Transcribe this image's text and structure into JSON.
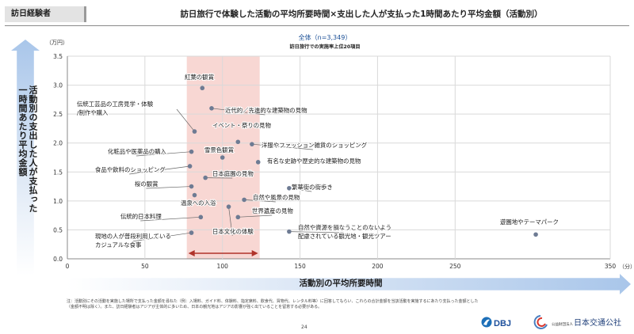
{
  "header": {
    "tag": "訪日経験者",
    "title": "訪日旅行で体験した活動の平均所要時間×支出した人が支払った1時間あたり平均金額（活動別）"
  },
  "chart_data": {
    "type": "scatter",
    "title": "全体（n=3,349）",
    "subtitle": "訪日旅行での実施率上位20項目",
    "xlabel": "活動別の平均所要時間",
    "ylabel": "活動別の支出した人が支払った一時間あたり平均金額",
    "x_unit": "（分）",
    "y_unit": "（万円）",
    "xlim": [
      0,
      350
    ],
    "ylim": [
      0,
      3.5
    ],
    "x_ticks": [
      "0",
      "50",
      "100",
      "150",
      "200",
      "250",
      "350"
    ],
    "y_ticks": [
      "0.0",
      "0.5",
      "1.0",
      "1.5",
      "2.0",
      "2.5",
      "3.0",
      "3.5"
    ],
    "grid": true,
    "highlight_band_x": [
      77,
      124
    ],
    "highlight_arrow": true,
    "points": [
      {
        "label": "紅葉の観賞",
        "x": 87,
        "y": 2.95
      },
      {
        "label": "近代的／先進的な建築物の見物",
        "x": 93,
        "y": 2.6
      },
      {
        "label": "伝統工芸品の工房見学・体験/制作や購入",
        "x": 82,
        "y": 2.2
      },
      {
        "label": "イベント・祭りの見物",
        "x": 110,
        "y": 2.02
      },
      {
        "label": "洋服やファッション雑貨のショッピング",
        "x": 119,
        "y": 1.98
      },
      {
        "label": "化粧品や医薬品の購入",
        "x": 80,
        "y": 1.85
      },
      {
        "label": "雪景色観賞",
        "x": 100,
        "y": 1.75
      },
      {
        "label": "有名な史跡や歴史的な建築物の見物",
        "x": 123,
        "y": 1.67
      },
      {
        "label": "食品や飲料のショッピング",
        "x": 79,
        "y": 1.6
      },
      {
        "label": "日本庭園の見物",
        "x": 89,
        "y": 1.4
      },
      {
        "label": "桜の観賞",
        "x": 80,
        "y": 1.25
      },
      {
        "label": "繁華街の街歩き",
        "x": 143,
        "y": 1.22
      },
      {
        "label": "温泉への入浴",
        "x": 82,
        "y": 1.1
      },
      {
        "label": "自然や風景の見物",
        "x": 114,
        "y": 1.02
      },
      {
        "label": "伝統的日本料理",
        "x": 86,
        "y": 0.72
      },
      {
        "label": "世界遺産の見物",
        "x": 110,
        "y": 0.72
      },
      {
        "label": "日本文化の体験",
        "x": 104,
        "y": 0.9
      },
      {
        "label": "現地の人が普段利用しているカジュアルな食事",
        "x": 80,
        "y": 0.45
      },
      {
        "label": "自然や資源を損なうことのないよう配慮されている観光地・観光ツアー",
        "x": 143,
        "y": 0.47
      },
      {
        "label": "遊園地やテーマパーク",
        "x": 302,
        "y": 0.42
      }
    ]
  },
  "footnote": "注：活動別にその活動を実施した場所で支払った金額を尋ねた（例：入場料、ガイド料、体験料、指定席料、飲食代、買物代、レンタル料等）に回答してもらい、これらの合計金額を当該活動を実施するにあたり支払った金額とした（金額不明は除く）。また、訪日経験者はアジアが主体的に多いため、日本の観光地はアジアの影響が強く出ていることを留意する必要がある。",
  "page_number": "24",
  "logos": {
    "dbj": "DBJ",
    "jtb_small": "公益財団法人",
    "jtb": "日本交通公社"
  }
}
